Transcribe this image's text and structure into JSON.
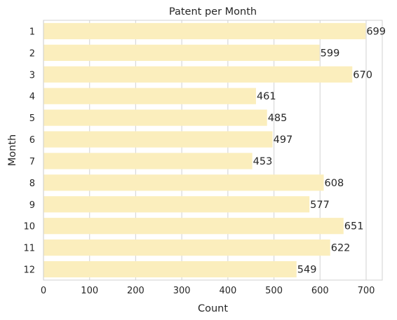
{
  "chart_data": {
    "type": "bar",
    "orientation": "horizontal",
    "title": "Patent per Month",
    "xlabel": "Count",
    "ylabel": "Month",
    "categories": [
      "1",
      "2",
      "3",
      "4",
      "5",
      "6",
      "7",
      "8",
      "9",
      "10",
      "11",
      "12"
    ],
    "values": [
      699,
      599,
      670,
      461,
      485,
      497,
      453,
      608,
      577,
      651,
      622,
      549
    ],
    "xlim": [
      0,
      735
    ],
    "xticks": [
      0,
      100,
      200,
      300,
      400,
      500,
      600,
      700
    ],
    "grid": true,
    "bar_color": "#fbeebd",
    "grid_color": "#d9d9d9",
    "data_labels": true
  }
}
